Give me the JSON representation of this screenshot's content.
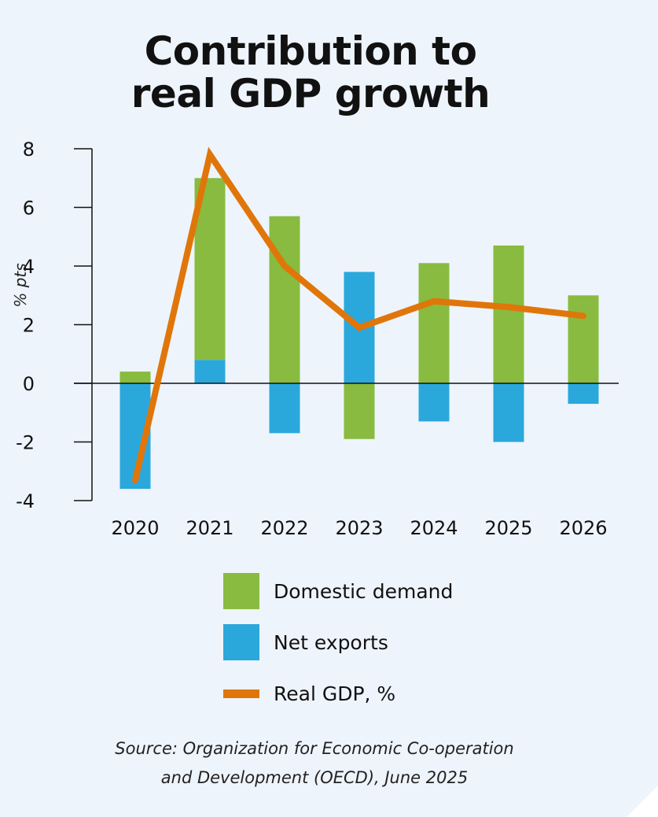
{
  "title_line1": "Contribution to",
  "title_line2": "real GDP growth",
  "colors": {
    "background": "#eef4fb",
    "domestic_demand": "#88bb3f",
    "net_exports": "#2aa8dc",
    "real_gdp": "#e0760a",
    "axis": "#111111"
  },
  "chart_data": {
    "type": "bar",
    "stacked": true,
    "title": "Contribution to real GDP growth",
    "xlabel": "",
    "ylabel": "% pts",
    "ylim": [
      -4,
      8
    ],
    "yticks": [
      8,
      6,
      4,
      2,
      0,
      -2,
      -4
    ],
    "categories": [
      "2020",
      "2021",
      "2022",
      "2023",
      "2024",
      "2025",
      "2026"
    ],
    "series": [
      {
        "name": "Domestic demand",
        "type": "bar",
        "values": [
          0.4,
          6.2,
          5.7,
          -1.9,
          4.1,
          4.7,
          3.0
        ]
      },
      {
        "name": "Net exports",
        "type": "bar",
        "values": [
          -3.6,
          0.8,
          -1.7,
          3.8,
          -1.3,
          -2.0,
          -0.7
        ]
      },
      {
        "name": "Real GDP, %",
        "type": "line",
        "values": [
          -3.3,
          7.8,
          4.0,
          1.9,
          2.8,
          2.6,
          2.3
        ]
      }
    ],
    "legend_position": "bottom",
    "grid": false
  },
  "legend": [
    {
      "label": "Domestic demand",
      "kind": "box",
      "color": "#88bb3f"
    },
    {
      "label": "Net exports",
      "kind": "box",
      "color": "#2aa8dc"
    },
    {
      "label": "Real GDP, %",
      "kind": "line",
      "color": "#e0760a"
    }
  ],
  "source_line1": "Source: Organization for Economic Co-operation",
  "source_line2": "and Development (OECD), June 2025"
}
